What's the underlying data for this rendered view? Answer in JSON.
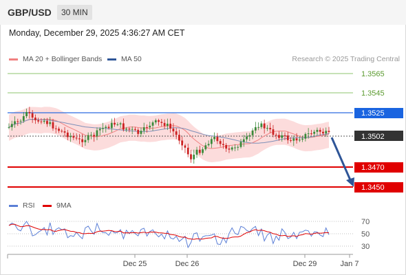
{
  "header": {
    "pair": "GBP/USD",
    "timeframe": "30 MIN"
  },
  "timestamp": "Monday, December 29, 2025 4:36:27 AM CET",
  "legend": {
    "ma20_label": "MA 20 + Bollinger Bands",
    "ma50_label": "MA 50",
    "credit": "Research © 2025 Trading Central",
    "rsi_label": "RSI",
    "ma9_label": "9MA"
  },
  "colors": {
    "ma20": "#f08080",
    "ma50": "#2e5597",
    "bollinger": "#fcd9d9",
    "candle_up": "#3a8a3a",
    "candle_down": "#cc2222",
    "resistance_green": "#7dbf5e",
    "pivot_blue": "#1a64e0",
    "support_red": "#e00000",
    "current_price": "#333333",
    "rsi": "#5b7fd6",
    "rsi_ma": "#e00000",
    "arrow": "#2e5597"
  },
  "chart_data": [
    {
      "type": "candlestick",
      "yaxis_direction": "price",
      "levels": [
        {
          "value": "1.3565",
          "kind": "resistance-2"
        },
        {
          "value": "1.3545",
          "kind": "resistance-1"
        },
        {
          "value": "1.3525",
          "kind": "pivot"
        },
        {
          "value": "1.3502",
          "kind": "current"
        },
        {
          "value": "1.3470",
          "kind": "support-1"
        },
        {
          "value": "1.3450",
          "kind": "support-2"
        }
      ],
      "xticks": [
        "Dec 25",
        "Dec 26",
        "Dec 29",
        "Jan 7"
      ],
      "projection": {
        "from": 1.3502,
        "to": 1.345,
        "direction": "down"
      }
    },
    {
      "type": "line",
      "title": "RSI",
      "yticks": [
        "70",
        "50",
        "30"
      ],
      "ylim": [
        20,
        80
      ]
    }
  ]
}
